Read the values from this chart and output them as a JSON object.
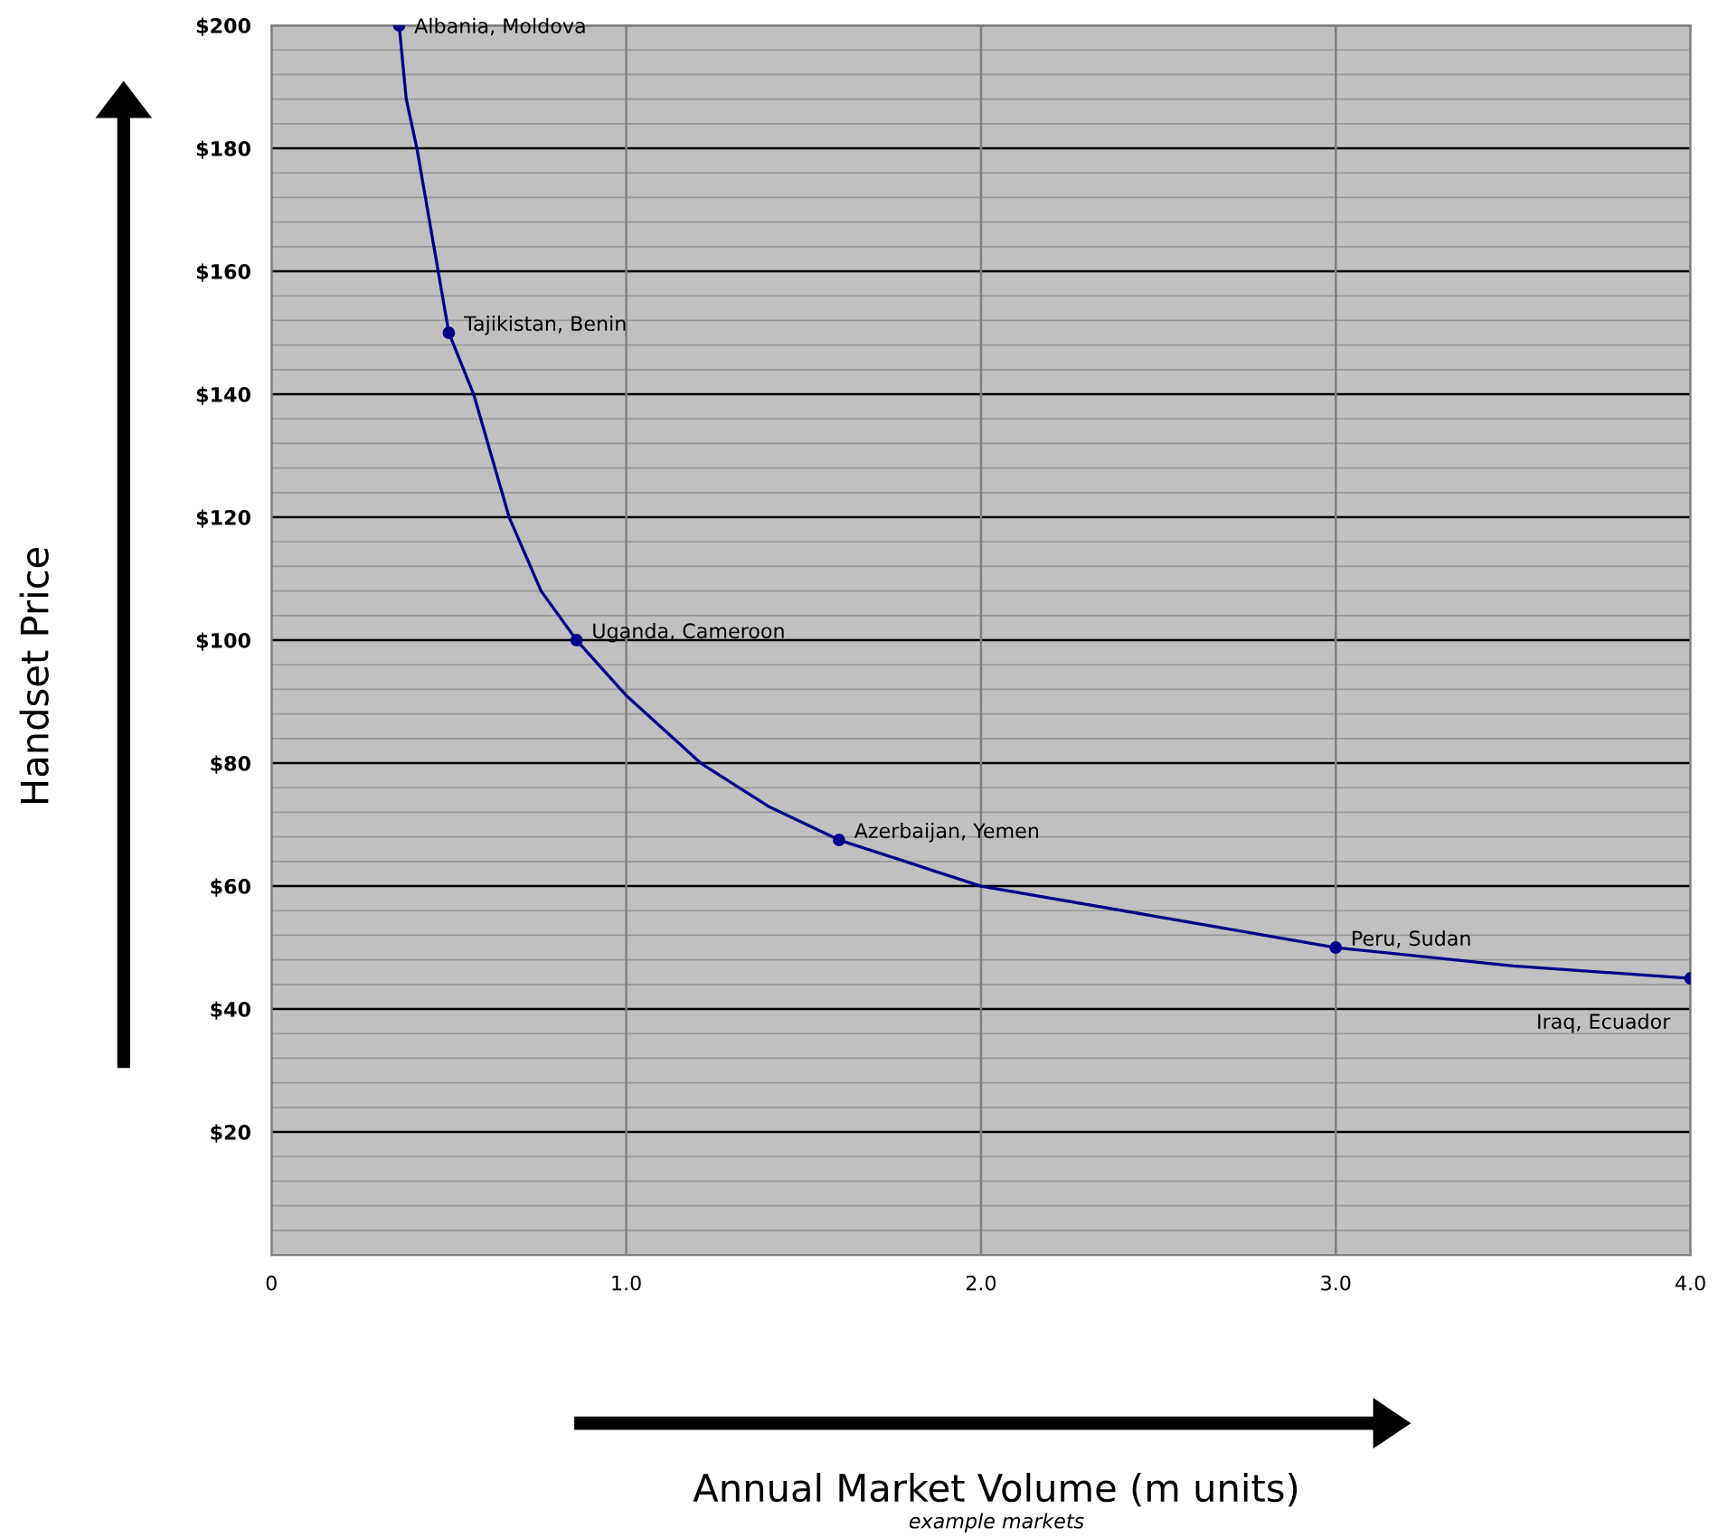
{
  "chart_data": {
    "type": "line",
    "xlabel": "Annual Market Volume (m units)",
    "ylabel": "Handset Price",
    "x": [
      0.36,
      0.5,
      0.86,
      1.6,
      3.0,
      4.0
    ],
    "series": [
      {
        "marker": "none",
        "color": "#00008b",
        "x": [
          0.36,
          0.38,
          0.41,
          0.44,
          0.5,
          0.57,
          0.67,
          0.76,
          0.86,
          1.0,
          1.21,
          1.4,
          1.6,
          2.0,
          2.5,
          3.0,
          3.5,
          4.0
        ],
        "values": [
          200,
          188,
          180,
          170,
          150,
          140,
          120,
          108,
          100,
          91,
          80,
          73,
          67.5,
          60,
          55,
          50,
          47,
          45
        ]
      },
      {
        "type": "scatter",
        "marker": "circle",
        "color": "#00008b",
        "values": [
          200,
          150,
          100,
          67.5,
          50,
          45
        ]
      }
    ],
    "line_style": "solid",
    "xlim": [
      0,
      4
    ],
    "xticks": [
      {
        "value": 0,
        "label": "0"
      },
      {
        "value": 1,
        "label": "1.0"
      },
      {
        "value": 2,
        "label": "2.0"
      },
      {
        "value": 3,
        "label": "3.0"
      },
      {
        "value": 4,
        "label": "4.0"
      }
    ],
    "ylim": [
      0,
      200
    ],
    "yticks": [
      {
        "value": 4,
        "label": null
      },
      {
        "value": 8,
        "label": null
      },
      {
        "value": 12,
        "label": null
      },
      {
        "value": 16,
        "label": null
      },
      {
        "value": 20,
        "label": "$20"
      },
      {
        "value": 24,
        "label": null
      },
      {
        "value": 28,
        "label": null
      },
      {
        "value": 32,
        "label": null
      },
      {
        "value": 36,
        "label": null
      },
      {
        "value": 40,
        "label": "$40"
      },
      {
        "value": 44,
        "label": null
      },
      {
        "value": 48,
        "label": null
      },
      {
        "value": 52,
        "label": null
      },
      {
        "value": 56,
        "label": null
      },
      {
        "value": 60,
        "label": "$60"
      },
      {
        "value": 64,
        "label": null
      },
      {
        "value": 68,
        "label": null
      },
      {
        "value": 72,
        "label": null
      },
      {
        "value": 76,
        "label": null
      },
      {
        "value": 80,
        "label": "$80"
      },
      {
        "value": 84,
        "label": null
      },
      {
        "value": 88,
        "label": null
      },
      {
        "value": 92,
        "label": null
      },
      {
        "value": 96,
        "label": null
      },
      {
        "value": 100,
        "label": "$100"
      },
      {
        "value": 104,
        "label": null
      },
      {
        "value": 108,
        "label": null
      },
      {
        "value": 112,
        "label": null
      },
      {
        "value": 116,
        "label": null
      },
      {
        "value": 120,
        "label": "$120"
      },
      {
        "value": 124,
        "label": null
      },
      {
        "value": 128,
        "label": null
      },
      {
        "value": 132,
        "label": null
      },
      {
        "value": 136,
        "label": null
      },
      {
        "value": 140,
        "label": "$140"
      },
      {
        "value": 144,
        "label": null
      },
      {
        "value": 148,
        "label": null
      },
      {
        "value": 152,
        "label": null
      },
      {
        "value": 156,
        "label": null
      },
      {
        "value": 160,
        "label": "$160"
      },
      {
        "value": 164,
        "label": null
      },
      {
        "value": 168,
        "label": null
      },
      {
        "value": 172,
        "label": null
      },
      {
        "value": 176,
        "label": null
      },
      {
        "value": 180,
        "label": "$180"
      },
      {
        "value": 184,
        "label": null
      },
      {
        "value": 188,
        "label": null
      },
      {
        "value": 192,
        "label": null
      },
      {
        "value": 196,
        "label": null
      },
      {
        "value": 200,
        "label": "$200"
      }
    ],
    "grid": true,
    "annotations": [
      {
        "text": "Albania, Moldova",
        "x": 0.36,
        "y": 200
      },
      {
        "text": "Tajikistan, Benin",
        "x": 0.5,
        "y": 150
      },
      {
        "text": "Uganda, Cameroon",
        "x": 0.86,
        "y": 100
      },
      {
        "text": "Azerbaijan, Yemen",
        "x": 1.6,
        "y": 67.5
      },
      {
        "text": "Peru, Sudan",
        "x": 3.0,
        "y": 50
      },
      {
        "text": "Iraq, Ecuador",
        "x": 4.0,
        "y": 45
      },
      "example markets"
    ]
  }
}
